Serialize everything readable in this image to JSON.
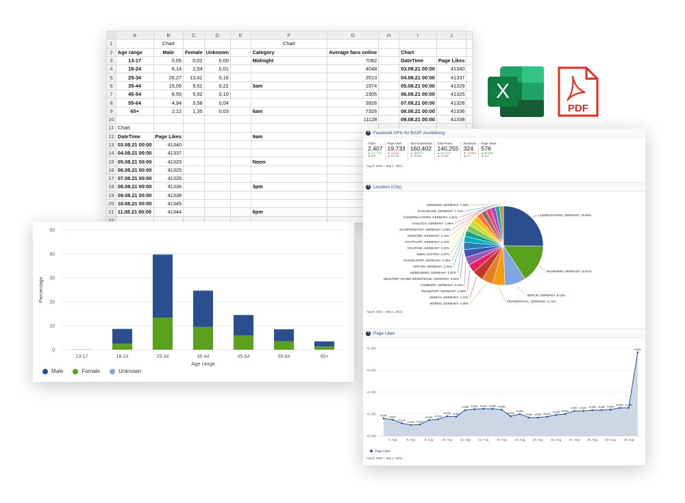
{
  "spreadsheet": {
    "columns": [
      "A",
      "B",
      "C",
      "D",
      "E",
      "F",
      "G",
      "H",
      "I",
      "J"
    ],
    "rows": [
      [
        "",
        "Chart",
        "",
        "",
        "",
        "Chart",
        "",
        "",
        "",
        ""
      ],
      [
        "Age range",
        "Male",
        "Female",
        "Unknown",
        "",
        "Category",
        "Average fans online",
        "",
        "Chart",
        ""
      ],
      [
        "13-17",
        "0,05",
        "0,02",
        "0,00",
        "",
        "Midnight",
        "7082",
        "",
        "DateTime",
        "Page Likes"
      ],
      [
        "18-24",
        "6,14",
        "2,54",
        "0,01",
        "",
        "",
        "4048",
        "",
        "03.08.21 00:00",
        "41340"
      ],
      [
        "25-34",
        "26,27",
        "13,41",
        "0,16",
        "",
        "",
        "2513",
        "",
        "04.08.21 00:00",
        "41337"
      ],
      [
        "35-44",
        "15,05",
        "9,51",
        "0,22",
        "",
        "3am",
        "1974",
        "",
        "05.08.21 00:00",
        "41329"
      ],
      [
        "45-54",
        "8,55",
        "5,92",
        "0,10",
        "",
        "",
        "2305",
        "",
        "06.08.21 00:00",
        "41325"
      ],
      [
        "55-64",
        "4,94",
        "3,58",
        "0,04",
        "",
        "",
        "3926",
        "",
        "07.08.21 00:00",
        "41326"
      ],
      [
        "65+",
        "2,12",
        "1,35",
        "0,03",
        "",
        "6am",
        "7326",
        "",
        "08.08.21 00:00",
        "41336"
      ],
      [
        "",
        "",
        "",
        "",
        "",
        "",
        "11128",
        "",
        "09.08.21 00:00",
        "41338"
      ],
      [
        "Chart",
        "",
        "",
        "",
        "",
        "",
        "",
        "",
        "",
        ""
      ],
      [
        "DateTime",
        "Page Likes",
        "",
        "",
        "",
        "9am",
        "",
        "",
        "",
        ""
      ],
      [
        "03.08.21 00:00",
        "41340",
        "",
        "",
        "",
        "",
        "",
        "",
        "",
        ""
      ],
      [
        "04.08.21 00:00",
        "41337",
        "",
        "",
        "",
        "",
        "",
        "",
        "",
        ""
      ],
      [
        "05.08.21 00:00",
        "41329",
        "",
        "",
        "",
        "Noon",
        "",
        "",
        "",
        ""
      ],
      [
        "06.08.21 00:00",
        "41325",
        "",
        "",
        "",
        "",
        "",
        "",
        "",
        ""
      ],
      [
        "07.08.21 00:00",
        "41326",
        "",
        "",
        "",
        "",
        "",
        "",
        "",
        ""
      ],
      [
        "08.08.21 00:00",
        "41336",
        "",
        "",
        "",
        "3pm",
        "",
        "",
        "",
        ""
      ],
      [
        "09.08.21 00:00",
        "41338",
        "",
        "",
        "",
        "",
        "",
        "",
        "",
        ""
      ],
      [
        "10.08.21 00:00",
        "41345",
        "",
        "",
        "",
        "",
        "",
        "",
        "",
        ""
      ],
      [
        "11.08.21 00:00",
        "41344",
        "",
        "",
        "",
        "6pm",
        "",
        "",
        "",
        ""
      ],
      [
        "",
        "",
        "",
        "",
        "",
        "",
        "",
        "",
        "",
        ""
      ]
    ]
  },
  "icons": {
    "excel_letter": "X",
    "pdf_label": "PDF"
  },
  "bar_chart": {
    "chart_data": {
      "type": "bar",
      "stacked": true,
      "categories": [
        "13-17",
        "18-24",
        "25-34",
        "35-44",
        "45-54",
        "55-64",
        "65+"
      ],
      "series": [
        {
          "name": "Male",
          "color": "#2b4f8e",
          "values": [
            0.05,
            6.14,
            26.27,
            15.05,
            8.55,
            4.94,
            2.12
          ]
        },
        {
          "name": "Female",
          "color": "#5aa11e",
          "values": [
            0.02,
            2.54,
            13.41,
            9.51,
            5.92,
            3.58,
            1.35
          ]
        },
        {
          "name": "Unknown",
          "color": "#7fa6e0",
          "values": [
            0.0,
            0.01,
            0.16,
            0.22,
            0.1,
            0.04,
            0.03
          ]
        }
      ],
      "xlabel": "Age range",
      "ylabel": "Percentage",
      "ylim": [
        0,
        50
      ],
      "yticks": [
        0,
        10,
        20,
        30,
        40,
        50
      ],
      "legend_position": "bottom-left",
      "grid": true
    }
  },
  "report": {
    "kpi_title": "Facebook KPIs for BASF Ausbildung",
    "date_range": "Aug 9, 2021 – Sep 1, 2021",
    "kpis": [
      {
        "label": "Clicks",
        "value": "2,407",
        "delta": "▲ 174.77%",
        "dir": "up",
        "prev": "▲ 876"
      },
      {
        "label": "Page Likes",
        "value": "19,733",
        "delta": "▼ -0.01%",
        "dir": "down",
        "prev": "▲ 19,735"
      },
      {
        "label": "Total Impressions",
        "value": "160,402",
        "delta": "▲ 469.97%",
        "dir": "up",
        "prev": "▲ 28,938"
      },
      {
        "label": "Total Reach",
        "value": "140,255",
        "delta": "▲ 500.97%",
        "dir": "up",
        "prev": "▲ 23,418"
      },
      {
        "label": "Reactions",
        "value": "324",
        "delta": "▼ -74.08%",
        "dir": "down",
        "prev": "▲ 977"
      },
      {
        "label": "Page Views",
        "value": "576",
        "delta": "▲ 80.90%",
        "dir": "up",
        "prev": "▲ 314"
      }
    ],
    "location_title": "Location (City)",
    "page_likes_title": "Page Likes",
    "pie": {
      "chart_data": {
        "type": "pie",
        "labels": [
          "LUDWIGSHAFEN, GERMANY",
          "MANNHEIM, GERMANY",
          "BERLIN, GERMANY",
          "FRANKENTHAL, GERMANY",
          "WORMS, GERMANY",
          "MUNICH, GERMANY",
          "FRANKFURT, GERMANY",
          "HAMBURG, GERMANY",
          "NEUSTADT AN DER WEINSTRASE, GERMANY",
          "HEIDELBERG, GERMANY",
          "SPEYER, GERMANY",
          "DUSSELDORF, GERMANY",
          "WIEN, AUSTRIA",
          "COLOGNE, GERMANY",
          "STUTTGART, GERMANY",
          "MUNSTER, GERMANY",
          "SCHIFFERSTADT, GERMANY",
          "HASLOCH, GERMANY",
          "KAISERSLAUTERN, GERMANY",
          "KARLSRUHE, GERMANY",
          "DRESDEN, GERMANY"
        ],
        "values": [
          23.9,
          14.81,
          8.13,
          4.71,
          4.35,
          4.23,
          3.25,
          3.13,
          3.04,
          2.87,
          2.31,
          2.28,
          2.27,
          2.21,
          2.13,
          2.13,
          2.03,
          1.96,
          1.81,
          1.71,
          1.49
        ],
        "display": [
          "LUDWIGSHAFEN, GERMANY: 23.90%",
          "MANNHEIM, GERMANY: 14.81%",
          "BERLIN, GERMANY: 8.13%",
          "FRANKENTHAL, GERMANY: 4.71%",
          "WORMS, GERMANY: 4.35%",
          "MUNICH, GERMANY: 4.23%",
          "FRANKFURT, GERMANY: 3.25%",
          "HAMBURG, GERMANY: 3.13%",
          "NEUSTADT AN DER WEINSTRASE, GERMANY: 3.04%",
          "HEIDELBERG, GERMANY: 2.87%",
          "SPEYER, GERMANY: 2.31%",
          "DUSSELDORF, GERMANY: 2.28%",
          "WIEN, AUSTRIA: 2.27%",
          "COLOGNE, GERMANY: 2.21%",
          "STUTTGART, GERMANY: 2.13%",
          "MUNSTER, GERMANY: 2.13%",
          "SCHIFFERSTADT, GERMANY: 2.03%",
          "HASLOCH, GERMANY: 1.96%",
          "KAISERSLAUTERN, GERMANY: 1.81%",
          "KARLSRUHE, GERMANY: 1.71%",
          "DRESDEN, GERMANY: 1.49%"
        ],
        "colors": [
          "#2b4f8e",
          "#5aa11e",
          "#7fa6e0",
          "#f39c12",
          "#e67e22",
          "#c0392b",
          "#e91e63",
          "#9b59b6",
          "#3f51b5",
          "#2980b9",
          "#00acc1",
          "#16a085",
          "#8bc34a",
          "#cddc39",
          "#ffc107",
          "#ff7043",
          "#8d6e63",
          "#ec407a",
          "#ab47bc",
          "#26a69a",
          "#b0a04a"
        ]
      }
    },
    "line": {
      "chart_data": {
        "type": "area",
        "series_name": "Page Likes",
        "color": "#2b4f8e",
        "x_labels": [
          "4. Aug",
          "6. Aug",
          "8. Aug",
          "10. Aug",
          "12. Aug",
          "14. Aug",
          "16. Aug",
          "18. Aug",
          "20. Aug",
          "22. Aug",
          "24. Aug",
          "26. Aug",
          "28. Aug",
          "30. Aug"
        ],
        "values": [
          41340,
          41337,
          41329,
          41325,
          41326,
          41336,
          41338,
          41345,
          41344,
          41359,
          41361,
          41362,
          41362,
          41360,
          41345,
          41350,
          41342,
          41342,
          41344,
          41348,
          41350,
          41357,
          41357,
          41359,
          41359,
          41360,
          41364,
          41364,
          41491
        ],
        "data_labels": [
          "41340",
          "41337",
          "41329",
          "41325",
          "41326",
          "41336",
          "41338",
          "41345",
          "41344",
          "41359",
          "41361",
          "41362",
          "41362",
          "41360",
          "41345",
          "41350",
          "41342",
          "41342",
          "41344",
          "41348",
          "41350",
          "41357",
          "41357",
          "41359",
          "41359",
          "41360",
          "41364",
          "41364",
          "41491"
        ],
        "ylim": [
          41300,
          41500
        ],
        "yticks": [
          "41 300",
          "41 350",
          "41 400",
          "41 450",
          "41 500"
        ],
        "legend": "Page Likes"
      }
    }
  }
}
